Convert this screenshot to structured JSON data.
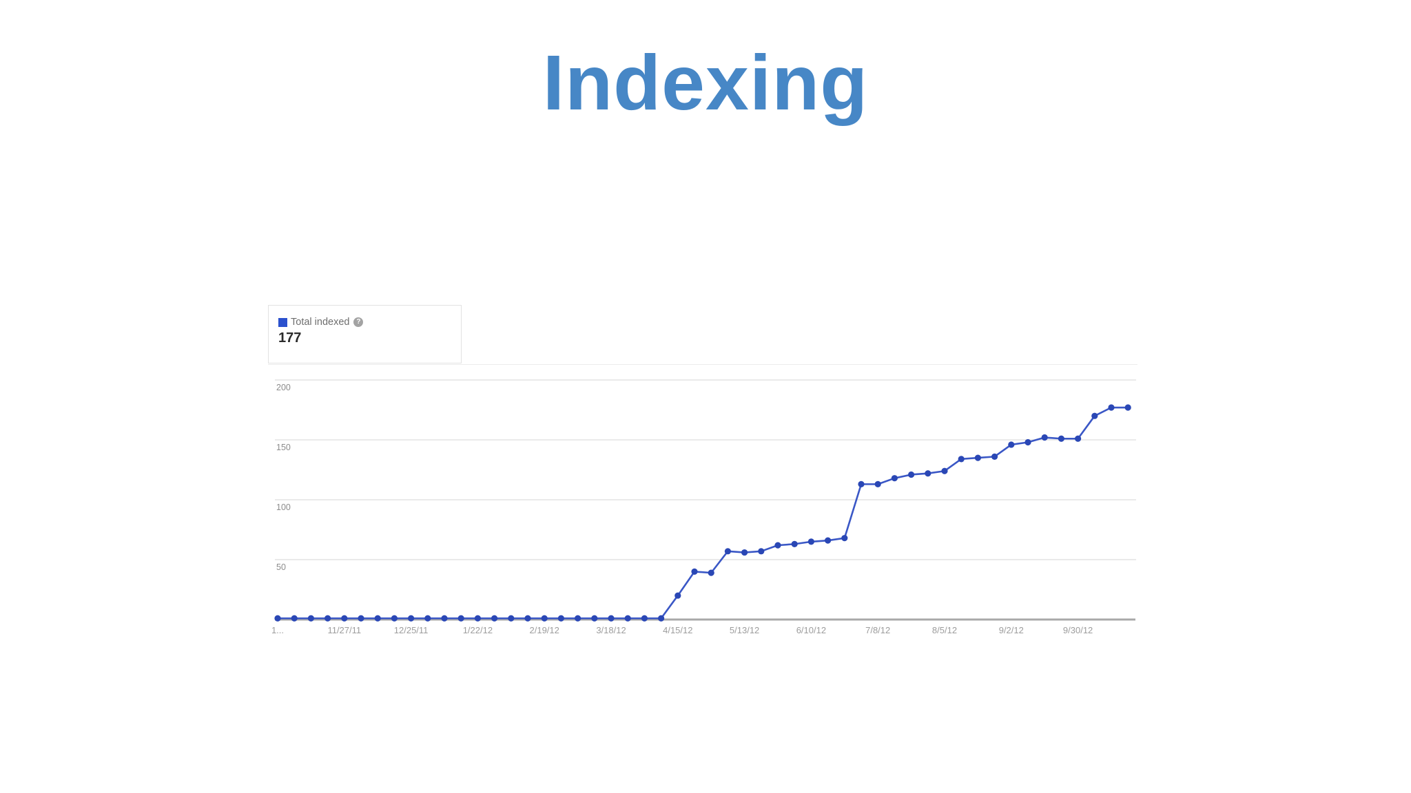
{
  "page": {
    "title": "Indexing"
  },
  "icons": {
    "help": "?"
  },
  "chart_data": {
    "type": "line",
    "title": "Indexing",
    "legend_position": "top-left",
    "legend": {
      "label": "Total indexed",
      "value": "177"
    },
    "xlabel": "",
    "ylabel": "",
    "ylim": [
      0,
      200
    ],
    "y_ticks": [
      50,
      100,
      150,
      200
    ],
    "grid": "horizontal",
    "x_tick_labels": [
      "1...",
      "11/27/11",
      "12/25/11",
      "1/22/12",
      "2/19/12",
      "3/18/12",
      "4/15/12",
      "5/13/12",
      "6/10/12",
      "7/8/12",
      "8/5/12",
      "9/2/12",
      "9/30/12"
    ],
    "x_tick_point_indices": [
      0,
      4,
      8,
      12,
      16,
      20,
      24,
      28,
      32,
      36,
      40,
      44,
      48
    ],
    "series": [
      {
        "name": "Total indexed",
        "color": "#3a57c6",
        "point_color": "#2a47b5",
        "values": [
          1,
          1,
          1,
          1,
          1,
          1,
          1,
          1,
          1,
          1,
          1,
          1,
          1,
          1,
          1,
          1,
          1,
          1,
          1,
          1,
          1,
          1,
          1,
          1,
          20,
          40,
          39,
          57,
          56,
          57,
          62,
          63,
          65,
          66,
          68,
          113,
          113,
          118,
          121,
          122,
          124,
          134,
          135,
          136,
          146,
          148,
          152,
          151,
          151,
          170,
          177,
          177
        ]
      }
    ],
    "colors": {
      "title": "#4787c6",
      "gridline": "#e4e4e4",
      "axis_baseline": "#a8a8a8"
    }
  }
}
